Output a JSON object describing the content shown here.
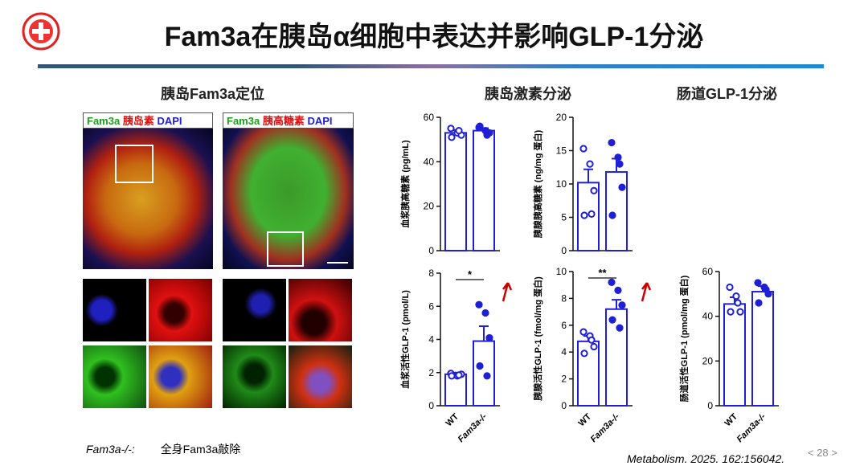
{
  "header": {
    "title": "Fam3a在胰岛α细胞中表达并影响GLP-1分泌"
  },
  "sections": [
    "胰岛Fam3a定位",
    "胰岛激素分泌",
    "肠道GLP-1分泌"
  ],
  "images": [
    {
      "labels": [
        "Fam3a",
        "胰岛素",
        "DAPI"
      ]
    },
    {
      "labels": [
        "Fam3a",
        "胰高糖素",
        "DAPI"
      ]
    }
  ],
  "chart_data": [
    {
      "type": "bar",
      "ylabel": "血浆胰高糖素 (pg/mL)",
      "color": "#1f1fd6",
      "values": [
        53,
        54
      ],
      "errors": [
        1.2,
        1.1
      ],
      "points": [
        [
          55,
          53,
          52,
          51,
          54
        ],
        [
          55.5,
          54,
          53,
          56,
          52
        ]
      ],
      "point_styles": [
        "open",
        "filled"
      ],
      "ylim": [
        0,
        60
      ],
      "yticks": [
        0,
        20,
        40,
        60
      ]
    },
    {
      "type": "bar",
      "ylabel": "胰腺胰高糖素 (ng/mg 蛋白)",
      "color": "#1f1fd6",
      "values": [
        10.2,
        11.8
      ],
      "errors": [
        2,
        2
      ],
      "points": [
        [
          15.3,
          13,
          9,
          5.3,
          5.5
        ],
        [
          16.2,
          14,
          9.5,
          5.3,
          13
        ]
      ],
      "point_styles": [
        "open",
        "filled"
      ],
      "ylim": [
        0,
        20
      ],
      "yticks": [
        0,
        5,
        10,
        15,
        20
      ]
    },
    {
      "type": "bar",
      "ylabel": "血浆活性GLP-1 (pmol/L)",
      "color": "#1f1fd6",
      "categories": [
        "WT",
        "Fam3a-/-"
      ],
      "values": [
        1.9,
        3.9
      ],
      "errors": [
        0.1,
        0.9
      ],
      "points": [
        [
          1.95,
          1.8,
          1.9,
          1.8,
          1.85
        ],
        [
          6.1,
          5.6,
          4.1,
          2.4,
          1.8
        ]
      ],
      "point_styles": [
        "open",
        "filled"
      ],
      "ylim": [
        0,
        8
      ],
      "yticks": [
        0,
        2,
        4,
        6,
        8
      ],
      "significance": "*"
    },
    {
      "type": "bar",
      "ylabel": "胰腺活性GLP-1 (fmol/mg 蛋白)",
      "color": "#1f1fd6",
      "categories": [
        "WT",
        "Fam3a-/-"
      ],
      "values": [
        4.8,
        7.2
      ],
      "errors": [
        0.4,
        0.7
      ],
      "points": [
        [
          5.5,
          5.2,
          4.4,
          3.9,
          4.9
        ],
        [
          9.2,
          8.6,
          7.5,
          6.4,
          5.8
        ]
      ],
      "point_styles": [
        "open",
        "filled"
      ],
      "ylim": [
        0,
        10
      ],
      "yticks": [
        0,
        2,
        4,
        6,
        8,
        10
      ],
      "significance": "**"
    },
    {
      "type": "bar",
      "ylabel": "肠道活性GLP-1 (pmol/mg 蛋白)",
      "color": "#1f1fd6",
      "categories": [
        "WT",
        "Fam3a-/-"
      ],
      "values": [
        45.5,
        51
      ],
      "errors": [
        3,
        2.5
      ],
      "points": [
        [
          53,
          49,
          42,
          42,
          46
        ],
        [
          55,
          53,
          50,
          46,
          52
        ]
      ],
      "point_styles": [
        "open",
        "filled"
      ],
      "ylim": [
        0,
        60
      ],
      "yticks": [
        0,
        20,
        40,
        60
      ]
    }
  ],
  "footer": {
    "note_term": "Fam3a-/-:",
    "note_text": "全身Fam3a敲除",
    "citation": "Metabolism. 2025. 162:156042.",
    "page": "< 28 >"
  }
}
